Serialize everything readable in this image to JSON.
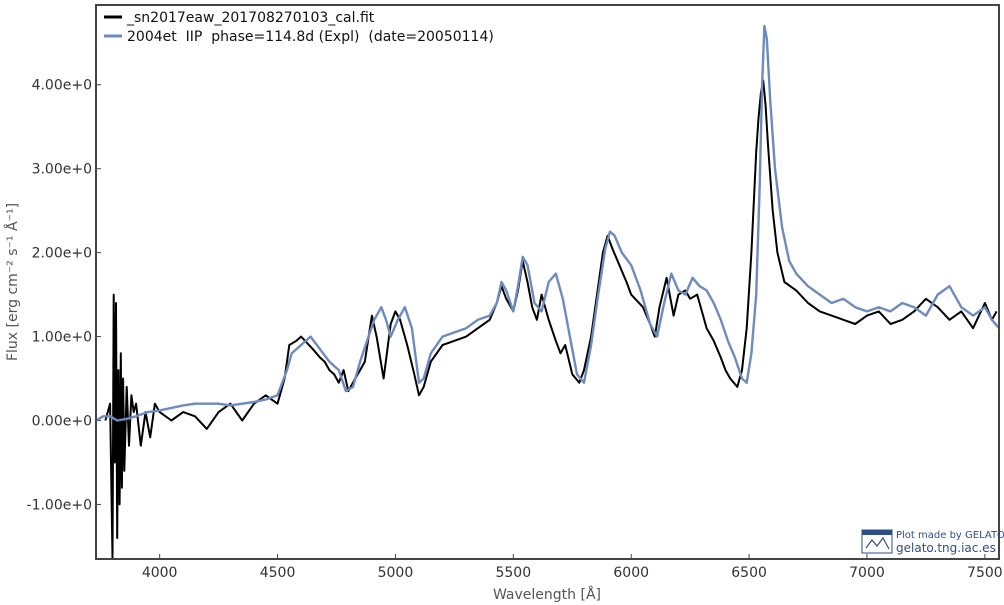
{
  "chart_data": {
    "type": "line",
    "title": "",
    "xlabel": "Wavelength [Å]",
    "ylabel": "Flux [erg cm⁻² s⁻¹ Å⁻¹]",
    "xlim": [
      3730,
      7560
    ],
    "ylim": [
      -1.65,
      4.95
    ],
    "x_ticks": [
      4000,
      4500,
      5000,
      5500,
      6000,
      6500,
      7000,
      7500
    ],
    "x_tick_labels": [
      "4000",
      "4500",
      "5000",
      "5500",
      "6000",
      "6500",
      "7000",
      "7500"
    ],
    "y_ticks": [
      -1.0,
      0.0,
      1.0,
      2.0,
      3.0,
      4.0
    ],
    "y_tick_labels": [
      "-1.00e+0",
      "0.00e+0",
      "1.00e+0",
      "2.00e+0",
      "3.00e+0",
      "4.00e+0"
    ],
    "grid": false,
    "legend_position": "top-left",
    "series": [
      {
        "name": "_sn2017eaw_201708270103_cal.fit",
        "color": "#000000",
        "x": [
          3770,
          3790,
          3800,
          3805,
          3810,
          3815,
          3820,
          3825,
          3830,
          3835,
          3840,
          3845,
          3850,
          3860,
          3870,
          3880,
          3890,
          3900,
          3920,
          3940,
          3960,
          3980,
          4000,
          4050,
          4100,
          4150,
          4200,
          4250,
          4300,
          4350,
          4400,
          4450,
          4500,
          4530,
          4550,
          4580,
          4600,
          4650,
          4680,
          4700,
          4720,
          4740,
          4760,
          4780,
          4800,
          4830,
          4850,
          4870,
          4900,
          4920,
          4950,
          4980,
          5000,
          5020,
          5050,
          5080,
          5100,
          5120,
          5150,
          5200,
          5250,
          5300,
          5350,
          5400,
          5430,
          5450,
          5470,
          5500,
          5520,
          5540,
          5560,
          5580,
          5600,
          5620,
          5650,
          5680,
          5700,
          5720,
          5750,
          5780,
          5800,
          5830,
          5860,
          5880,
          5900,
          5920,
          5950,
          5980,
          6000,
          6050,
          6080,
          6100,
          6120,
          6150,
          6180,
          6200,
          6230,
          6250,
          6280,
          6300,
          6320,
          6350,
          6380,
          6400,
          6420,
          6450,
          6470,
          6490,
          6510,
          6530,
          6540,
          6550,
          6560,
          6570,
          6580,
          6600,
          6620,
          6650,
          6700,
          6750,
          6800,
          6850,
          6900,
          6950,
          7000,
          7050,
          7100,
          7150,
          7200,
          7250,
          7300,
          7350,
          7400,
          7450,
          7500,
          7530,
          7550
        ],
        "y": [
          0.0,
          0.2,
          -1.65,
          1.5,
          -0.5,
          1.4,
          -1.4,
          0.6,
          -1.0,
          0.8,
          -0.8,
          0.5,
          -0.6,
          0.4,
          -0.3,
          0.3,
          0.1,
          0.2,
          -0.3,
          0.1,
          -0.2,
          0.2,
          0.1,
          0.0,
          0.1,
          0.05,
          -0.1,
          0.1,
          0.2,
          0.0,
          0.2,
          0.3,
          0.2,
          0.5,
          0.9,
          0.95,
          1.0,
          0.85,
          0.75,
          0.7,
          0.6,
          0.55,
          0.45,
          0.6,
          0.35,
          0.5,
          0.6,
          0.7,
          1.25,
          1.0,
          0.5,
          1.15,
          1.3,
          1.2,
          0.9,
          0.55,
          0.3,
          0.4,
          0.7,
          0.9,
          0.95,
          1.0,
          1.1,
          1.2,
          1.4,
          1.6,
          1.45,
          1.3,
          1.55,
          1.9,
          1.65,
          1.35,
          1.2,
          1.5,
          1.2,
          0.95,
          0.8,
          0.9,
          0.55,
          0.45,
          0.6,
          1.0,
          1.6,
          2.0,
          2.2,
          2.05,
          1.85,
          1.65,
          1.5,
          1.35,
          1.15,
          1.0,
          1.35,
          1.7,
          1.25,
          1.5,
          1.55,
          1.45,
          1.5,
          1.3,
          1.1,
          0.95,
          0.75,
          0.6,
          0.5,
          0.4,
          0.6,
          1.1,
          2.0,
          3.2,
          3.6,
          3.9,
          4.05,
          3.75,
          3.3,
          2.5,
          2.0,
          1.65,
          1.55,
          1.4,
          1.3,
          1.25,
          1.2,
          1.15,
          1.25,
          1.3,
          1.15,
          1.2,
          1.3,
          1.45,
          1.35,
          1.2,
          1.3,
          1.1,
          1.4,
          1.2,
          1.3
        ]
      },
      {
        "name": "2004et  IIP  phase=114.8d (Expl)  (date=20050114)",
        "color": "#6e8bbd",
        "x": [
          3730,
          3760,
          3790,
          3820,
          3860,
          3900,
          3950,
          4000,
          4050,
          4100,
          4150,
          4200,
          4250,
          4300,
          4350,
          4400,
          4450,
          4500,
          4540,
          4560,
          4600,
          4640,
          4680,
          4720,
          4760,
          4790,
          4820,
          4850,
          4880,
          4910,
          4940,
          4960,
          4980,
          5010,
          5040,
          5070,
          5100,
          5120,
          5150,
          5200,
          5250,
          5300,
          5350,
          5400,
          5430,
          5450,
          5470,
          5500,
          5520,
          5540,
          5560,
          5590,
          5620,
          5650,
          5680,
          5710,
          5740,
          5770,
          5800,
          5830,
          5860,
          5890,
          5910,
          5930,
          5960,
          6000,
          6040,
          6080,
          6110,
          6140,
          6170,
          6200,
          6230,
          6260,
          6290,
          6320,
          6350,
          6380,
          6410,
          6440,
          6470,
          6490,
          6510,
          6530,
          6545,
          6555,
          6565,
          6575,
          6590,
          6610,
          6640,
          6670,
          6700,
          6750,
          6800,
          6850,
          6900,
          6950,
          7000,
          7050,
          7100,
          7150,
          7200,
          7250,
          7300,
          7350,
          7400,
          7450,
          7500,
          7530,
          7560
        ],
        "y": [
          0.0,
          0.05,
          0.05,
          0.0,
          0.02,
          0.05,
          0.1,
          0.12,
          0.15,
          0.18,
          0.2,
          0.2,
          0.2,
          0.18,
          0.2,
          0.22,
          0.25,
          0.3,
          0.6,
          0.8,
          0.9,
          1.0,
          0.85,
          0.7,
          0.6,
          0.35,
          0.4,
          0.7,
          0.95,
          1.2,
          1.35,
          1.2,
          1.0,
          1.2,
          1.35,
          1.1,
          0.45,
          0.5,
          0.8,
          1.0,
          1.05,
          1.1,
          1.2,
          1.25,
          1.4,
          1.65,
          1.55,
          1.3,
          1.6,
          1.95,
          1.85,
          1.4,
          1.3,
          1.65,
          1.75,
          1.45,
          1.0,
          0.55,
          0.45,
          0.9,
          1.5,
          2.05,
          2.25,
          2.2,
          2.0,
          1.85,
          1.55,
          1.15,
          1.0,
          1.4,
          1.75,
          1.55,
          1.5,
          1.7,
          1.6,
          1.55,
          1.4,
          1.2,
          0.95,
          0.75,
          0.5,
          0.45,
          0.8,
          1.5,
          2.8,
          4.0,
          4.7,
          4.55,
          3.8,
          3.0,
          2.3,
          1.9,
          1.75,
          1.6,
          1.5,
          1.4,
          1.45,
          1.35,
          1.3,
          1.35,
          1.3,
          1.4,
          1.35,
          1.25,
          1.5,
          1.6,
          1.35,
          1.25,
          1.35,
          1.2,
          1.1
        ]
      }
    ],
    "watermark": {
      "line1": "Plot made by GELATO",
      "line2": "gelato.tng.iac.es"
    }
  }
}
